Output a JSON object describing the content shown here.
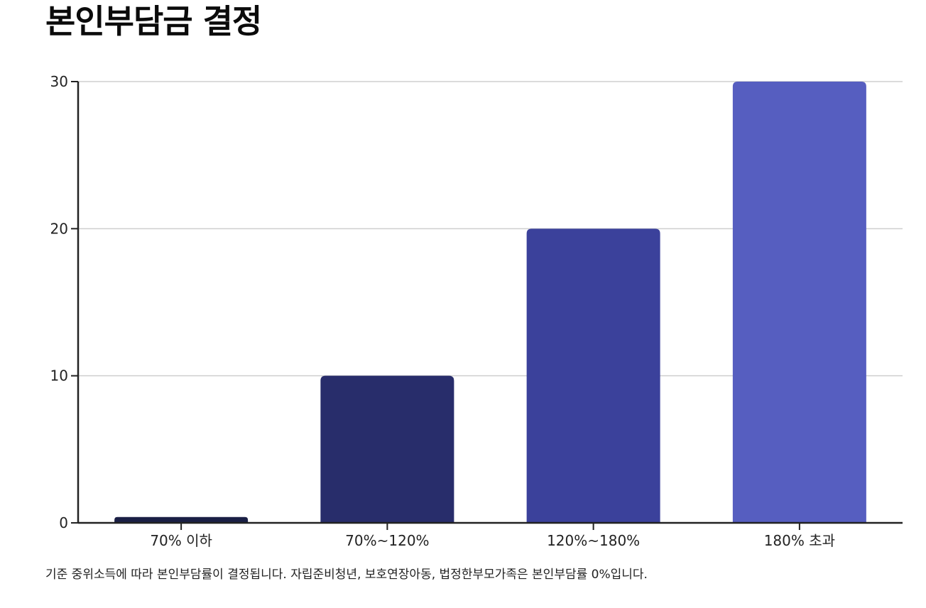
{
  "title": "본인부담금 결정",
  "footnote": "기준 중위소득에 따라 본인부담률이 결정됩니다. 자립준비청년, 보호연장아동, 법정한부모가족은 본인부담률 0%입니다.",
  "chart_data": {
    "type": "bar",
    "categories": [
      "70% 이하",
      "70%~120%",
      "120%~180%",
      "180% 초과"
    ],
    "values": [
      0.4,
      10,
      20,
      30
    ],
    "colors": [
      "#1a1f45",
      "#282d6b",
      "#3b419b",
      "#565ec0"
    ],
    "title": "본인부담금 결정",
    "xlabel": "",
    "ylabel": "",
    "ylim": [
      0,
      30
    ],
    "yticks": [
      0,
      10,
      20,
      30
    ],
    "grid": true,
    "legend": "none"
  }
}
